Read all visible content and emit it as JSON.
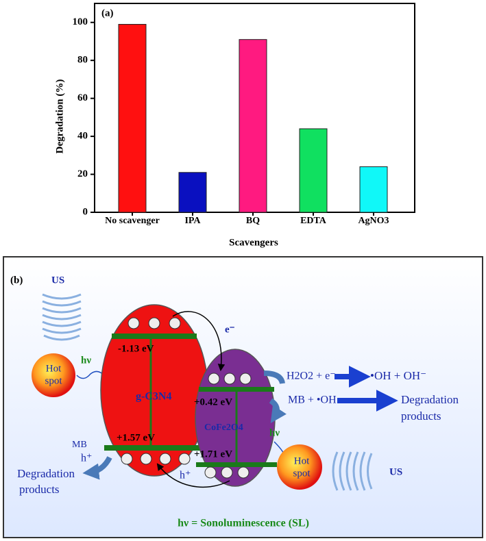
{
  "chart_data": {
    "type": "bar",
    "title": "(a)",
    "x_label": "Scavengers",
    "y_label": "Degradation (%)",
    "categories": [
      "No scavenger",
      "IPA",
      "BQ",
      "EDTA",
      "AgNO3"
    ],
    "values": [
      99,
      21,
      91,
      44,
      24
    ],
    "colors": [
      "#ff1010",
      "#0a10c0",
      "#ff1a80",
      "#10e060",
      "#10f8f8"
    ],
    "ylim": [
      0,
      110
    ],
    "yticks": [
      0,
      20,
      40,
      60,
      80,
      100
    ],
    "grid": false
  },
  "diagram": {
    "label": "(b)",
    "sources": [
      {
        "name": "US",
        "hot_spot": [
          "Hot",
          "spot"
        ],
        "light": "hν"
      },
      {
        "name": "US",
        "hot_spot": [
          "Hot",
          "spot"
        ],
        "light": "hν"
      }
    ],
    "catalysts": [
      {
        "name": "g-C3N4",
        "cb": "-1.13 eV",
        "vb": "+1.57 eV"
      },
      {
        "name": "CoFe2O4",
        "cb": "+0.42 eV",
        "vb": "+1.71 eV"
      }
    ],
    "electron": "e⁻",
    "holes": [
      "h⁺",
      "h⁺"
    ],
    "mb": "MB",
    "left_products": [
      "Degradation",
      "products"
    ],
    "reaction1": "H2O2 + e⁻",
    "reaction1_products": "•OH +  OH⁻",
    "reaction2": "MB + •OH",
    "reaction2_products": [
      "Degradation",
      "products"
    ],
    "caption": "hν = Sonoluminescence (SL)"
  }
}
